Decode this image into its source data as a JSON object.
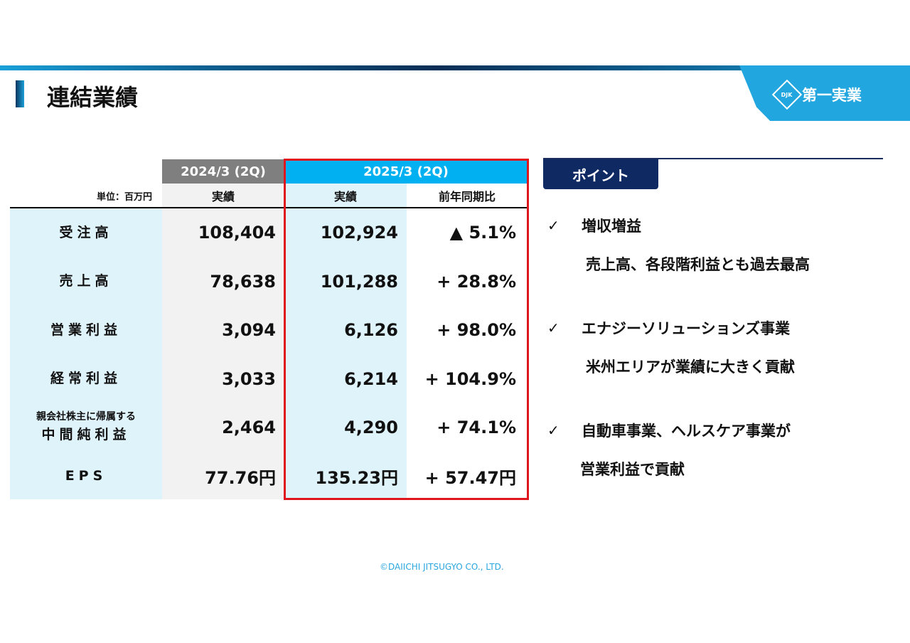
{
  "header": {
    "title": "連結業績",
    "logo_text": "第一実業",
    "logo_mark": "DJK"
  },
  "table": {
    "unit": "単位：百万円",
    "period_prev": "2024/3 (2Q)",
    "period_curr": "2025/3 (2Q)",
    "sub_prev": "実績",
    "sub_curr": "実績",
    "sub_yoy": "前年同期比",
    "rows": [
      {
        "label": "受注高",
        "prev": "108,404",
        "curr": "102,924",
        "yoy": "▲ 5.1%"
      },
      {
        "label": "売上高",
        "prev": "78,638",
        "curr": "101,288",
        "yoy": "+ 28.8%"
      },
      {
        "label": "営業利益",
        "prev": "3,094",
        "curr": "6,126",
        "yoy": "+ 98.0%"
      },
      {
        "label": "経常利益",
        "prev": "3,033",
        "curr": "6,214",
        "yoy": "+ 104.9%"
      },
      {
        "label_top": "親会社株主に帰属する",
        "label": "中間純利益",
        "prev": "2,464",
        "curr": "4,290",
        "yoy": "+ 74.1%"
      },
      {
        "label": "EPS",
        "prev": "77.76円",
        "curr": "135.23円",
        "yoy": "+ 57.47円"
      }
    ]
  },
  "points": {
    "title": "ポイント",
    "items": [
      {
        "check": "✓",
        "head": "増収増益",
        "sub": "売上高、各段階利益とも過去最高"
      },
      {
        "check": "✓",
        "head": "エナジーソリューションズ事業",
        "sub": "米州エリアが業績に大きく貢献"
      },
      {
        "check": "✓",
        "head": "自動車事業、ヘルスケア事業が",
        "sub": "営業利益で貢献"
      }
    ]
  },
  "footer": "©DAIICHI JITSUGYO CO., LTD."
}
